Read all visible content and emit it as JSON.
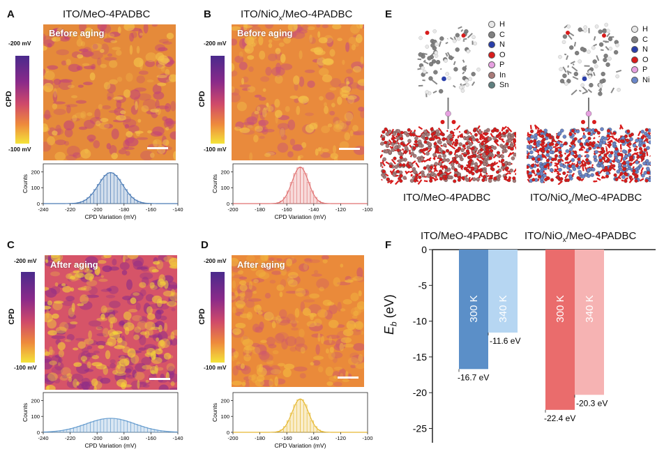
{
  "panels": {
    "A": {
      "letter": "A",
      "title": "ITO/MeO-4PADBC",
      "map_label": "Before aging"
    },
    "B": {
      "letter": "B",
      "title_pre": "ITO/NiO",
      "title_sub": "x",
      "title_post": "/MeO-4PADBC",
      "map_label": "Before aging"
    },
    "C": {
      "letter": "C",
      "map_label": "After aging"
    },
    "D": {
      "letter": "D",
      "map_label": "After aging"
    },
    "E": {
      "letter": "E",
      "struct1_label": "ITO/MeO-4PADBC",
      "struct2_pre": "ITO/NiO",
      "struct2_sub": "x",
      "struct2_post": "/MeO-4PADBC",
      "legend1": [
        "H",
        "C",
        "N",
        "O",
        "P",
        "In",
        "Sn"
      ],
      "legend2": [
        "H",
        "C",
        "N",
        "O",
        "P",
        "Ni"
      ]
    },
    "F": {
      "letter": "F",
      "group1": "ITO/MeO-4PADBC",
      "group2_pre": "ITO/NiO",
      "group2_sub": "x",
      "group2_post": "/MeO-4PADBC",
      "ylabel": "E",
      "ylabel_sub": "b",
      "ylabel_unit": " (eV)"
    }
  },
  "colorbar": {
    "top": "-200 mV",
    "bottom": "-100 mV",
    "label": "CPD"
  },
  "hist_common": {
    "ylabel": "Counts",
    "xlabel": "CPD Variation (mV)"
  },
  "atom_colors": {
    "H": "#e8e8e8",
    "C": "#808080",
    "N": "#2a3faa",
    "O": "#d81c1c",
    "P": "#e6a0e0",
    "In": "#a87a78",
    "Sn": "#5f7f7f",
    "Ni": "#6a86c8"
  },
  "chart_data": [
    {
      "type": "bar",
      "panel": "A",
      "xlim": [
        -240,
        -140
      ],
      "ylim": [
        0,
        250
      ],
      "xticks": [
        -240,
        -220,
        -200,
        -180,
        -160,
        -140
      ],
      "yticks": [
        0,
        100,
        200
      ],
      "mean": -190,
      "sigma": 9,
      "peak": 195,
      "color": "#4a7ab5"
    },
    {
      "type": "bar",
      "panel": "B",
      "xlim": [
        -200,
        -100
      ],
      "ylim": [
        0,
        250
      ],
      "xticks": [
        -200,
        -180,
        -160,
        -140,
        -120,
        -100
      ],
      "yticks": [
        0,
        100,
        200
      ],
      "mean": -150,
      "sigma": 6,
      "peak": 230,
      "color": "#e07070"
    },
    {
      "type": "bar",
      "panel": "C",
      "xlim": [
        -240,
        -140
      ],
      "ylim": [
        0,
        250
      ],
      "xticks": [
        -240,
        -220,
        -200,
        -180,
        -160,
        -140
      ],
      "yticks": [
        0,
        100,
        200
      ],
      "mean": -190,
      "sigma": 18,
      "peak": 88,
      "color": "#6a9fd0"
    },
    {
      "type": "bar",
      "panel": "D",
      "xlim": [
        -200,
        -100
      ],
      "ylim": [
        0,
        250
      ],
      "xticks": [
        -200,
        -180,
        -160,
        -140,
        -120,
        -100
      ],
      "yticks": [
        0,
        100,
        200
      ],
      "mean": -150,
      "sigma": 6,
      "peak": 210,
      "color": "#e6b830"
    },
    {
      "type": "bar",
      "panel": "F",
      "ylim": [
        -27,
        0
      ],
      "yticks": [
        0,
        -5,
        -10,
        -15,
        -20,
        -25
      ],
      "bars": [
        {
          "group": "ITO/MeO-4PADBC",
          "label": "300 K",
          "value": -16.7,
          "text": "-16.7 eV",
          "color": "#5b8fc8"
        },
        {
          "group": "ITO/MeO-4PADBC",
          "label": "340 K",
          "value": -11.6,
          "text": "-11.6 eV",
          "color": "#b6d6f2"
        },
        {
          "group": "ITO/NiOx/MeO-4PADBC",
          "label": "300 K",
          "value": -22.4,
          "text": "-22.4 eV",
          "color": "#ea6c6c"
        },
        {
          "group": "ITO/NiOx/MeO-4PADBC",
          "label": "340 K",
          "value": -20.3,
          "text": "-20.3 eV",
          "color": "#f6b3b3"
        }
      ]
    }
  ]
}
